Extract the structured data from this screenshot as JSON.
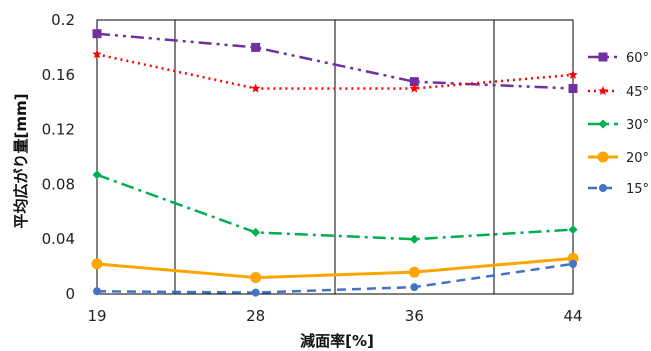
{
  "chart_data": {
    "type": "line",
    "xlabel": "減面率[%]",
    "ylabel": "平均広がり量[mm]",
    "x": [
      19,
      28,
      36,
      44
    ],
    "x_tick_labels": [
      "19",
      "28",
      "36",
      "44"
    ],
    "xlim": [
      19,
      44
    ],
    "ylim": [
      0,
      0.2
    ],
    "y_tick_labels": [
      "0",
      "0.04",
      "0.08",
      "0.12",
      "0.16",
      "0.2"
    ],
    "grid": "vertical",
    "legend": "right",
    "series": [
      {
        "name": "60°",
        "values": [
          0.19,
          0.18,
          0.155,
          0.15
        ],
        "color": "#7030a0",
        "dash": "dash-dot-dot",
        "marker": "square"
      },
      {
        "name": "45°",
        "values": [
          0.175,
          0.15,
          0.15,
          0.16
        ],
        "color": "#ff0000",
        "dash": "dotted",
        "marker": "star"
      },
      {
        "name": "30°",
        "values": [
          0.087,
          0.045,
          0.04,
          0.047
        ],
        "color": "#00b050",
        "dash": "dash-dot",
        "marker": "diamond"
      },
      {
        "name": "20°",
        "values": [
          0.022,
          0.012,
          0.016,
          0.026
        ],
        "color": "#ffa500",
        "dash": "solid",
        "marker": "circle"
      },
      {
        "name": "15°",
        "values": [
          0.002,
          0.001,
          0.005,
          0.022
        ],
        "color": "#4472c4",
        "dash": "dashed",
        "marker": "circle"
      }
    ]
  }
}
